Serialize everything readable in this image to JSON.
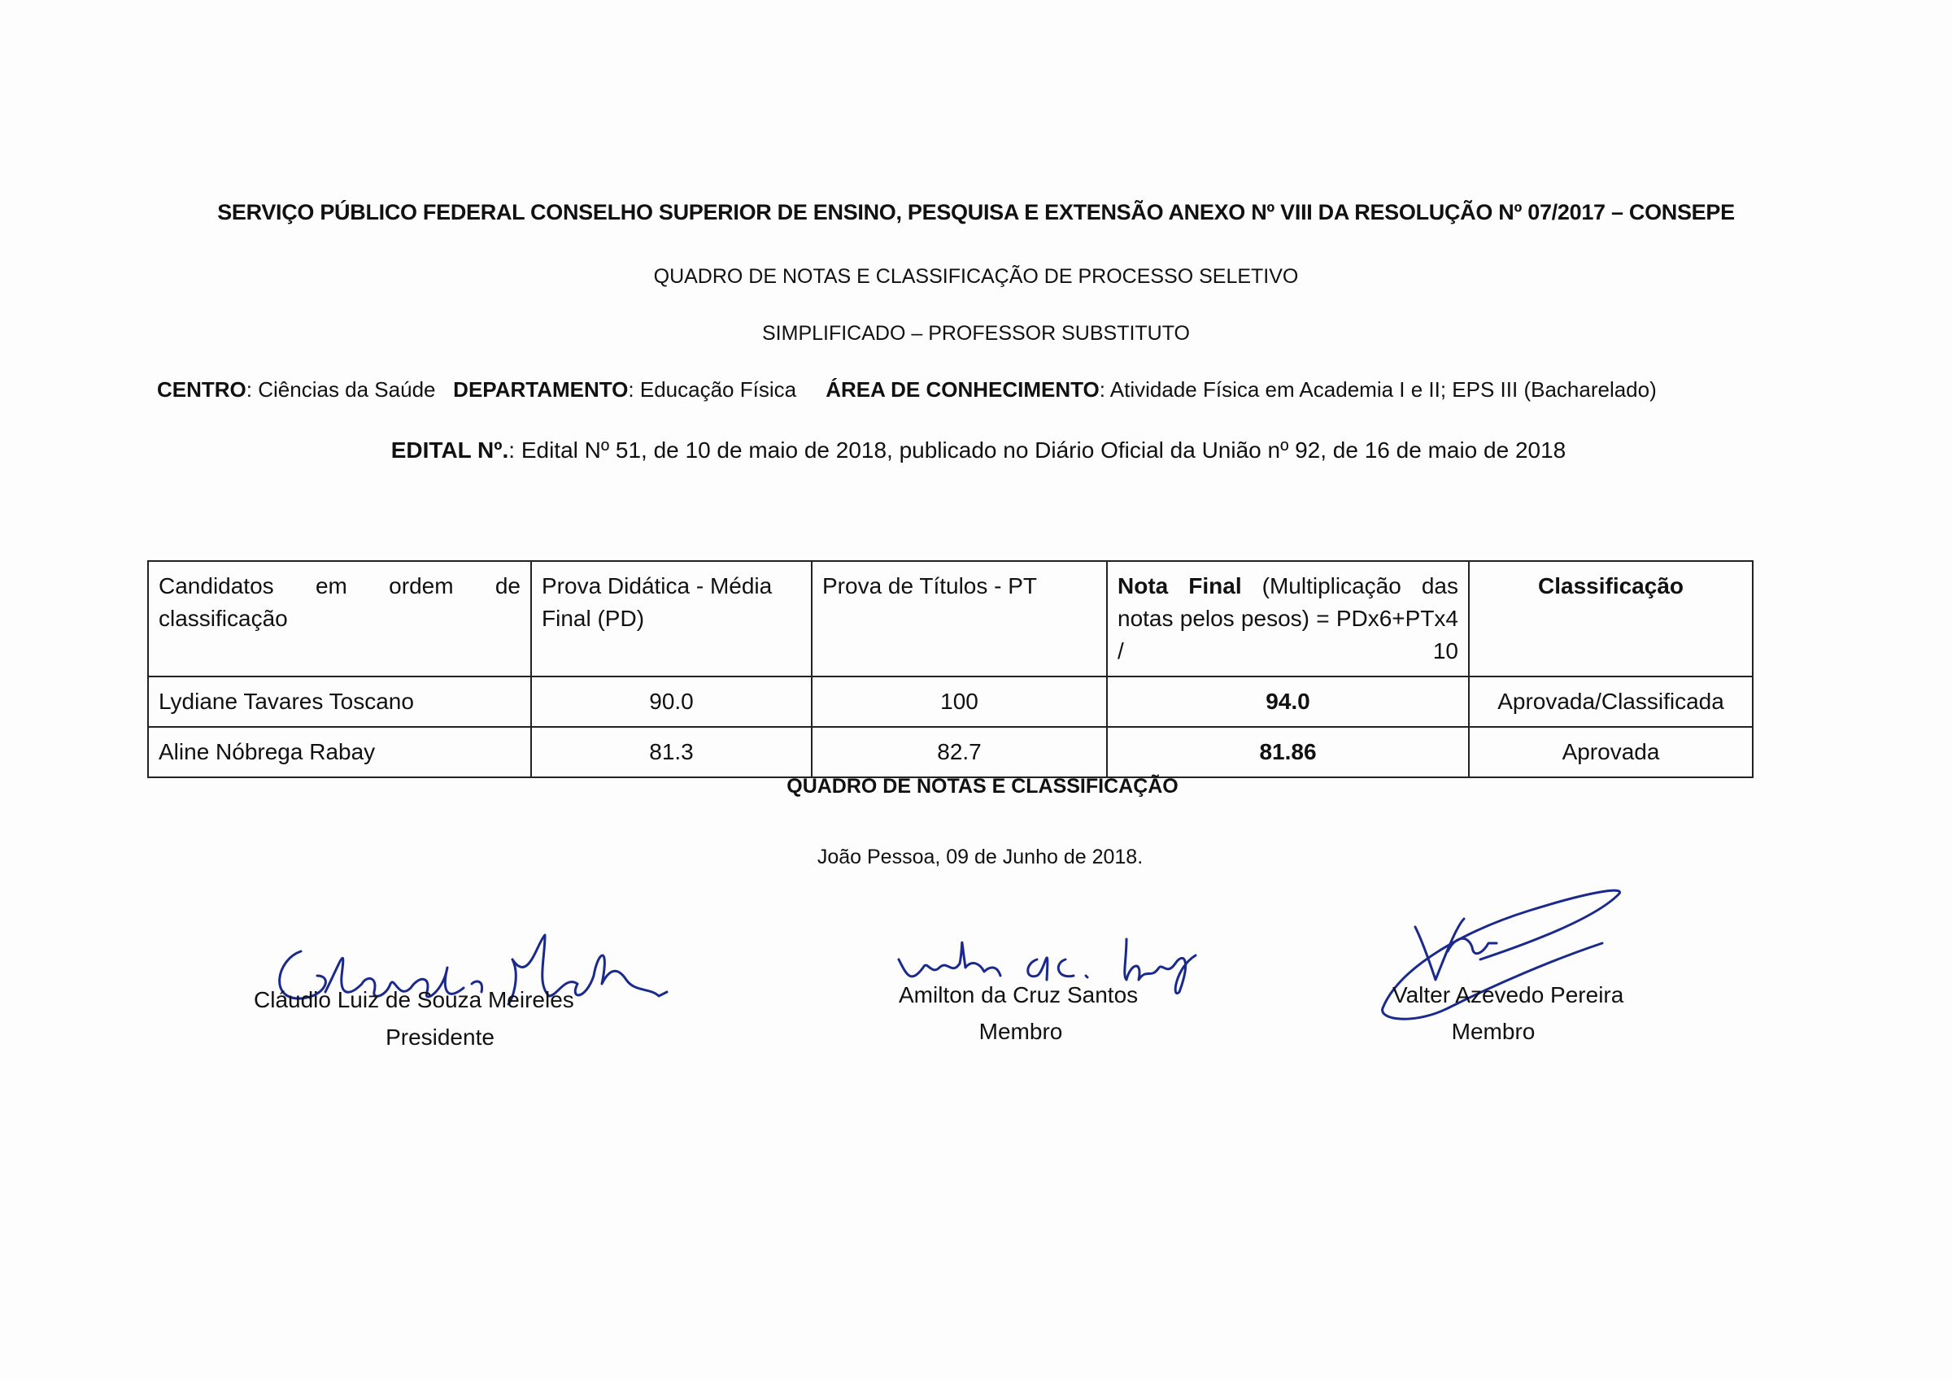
{
  "header": {
    "line1": "SERVIÇO PÚBLICO FEDERAL CONSELHO SUPERIOR DE ENSINO, PESQUISA E EXTENSÃO ANEXO Nº VIII DA RESOLUÇÃO Nº 07/2017 – CONSEPE",
    "line2": "QUADRO DE NOTAS E CLASSIFICAÇÃO DE PROCESSO SELETIVO",
    "line3": "SIMPLIFICADO – PROFESSOR SUBSTITUTO",
    "centro_label": "CENTRO",
    "centro_value": ": Ciências da Saúde",
    "departamento_label": "DEPARTAMENTO",
    "departamento_value": ": Educação Física",
    "area_label": "ÁREA DE CONHECIMENTO",
    "area_value": ":  Atividade Física em Academia I e II; EPS III (Bacharelado)",
    "edital_label": "EDITAL Nº.",
    "edital_value": ": Edital Nº 51, de 10 de maio de 2018, publicado no Diário Oficial da União nº 92, de 16 de maio de 2018"
  },
  "table": {
    "columns": {
      "candidatos": "Candidatos em ordem de classificação",
      "pd": "Prova Didática - Média Final (PD)",
      "pt": "Prova de Títulos - PT",
      "nota_bold": "Nota Final",
      "nota_rest": " (Multiplicação das notas pelos pesos) = PDx6+PTx4 / 10",
      "classificacao": "Classificação"
    },
    "rows": [
      {
        "nome": "Lydiane Tavares Toscano",
        "pd": "90.0",
        "pt": "100",
        "nota": "94.0",
        "classificacao": "Aprovada/Classificada"
      },
      {
        "nome": "Aline Nóbrega Rabay",
        "pd": "81.3",
        "pt": "82.7",
        "nota": "81.86",
        "classificacao": "Aprovada"
      }
    ]
  },
  "caption": "QUADRO DE NOTAS E CLASSIFICAÇÃO",
  "place_date": "João Pessoa, 09 de Junho de 2018.",
  "signatures": [
    {
      "name": "Cláudio Luiz de Souza Meireles",
      "role": "Presidente"
    },
    {
      "name": "Amilton da Cruz Santos",
      "role": "Membro"
    },
    {
      "name": "Valter Azevedo Pereira",
      "role": "Membro"
    }
  ],
  "ink_color": "#1a2a8c"
}
